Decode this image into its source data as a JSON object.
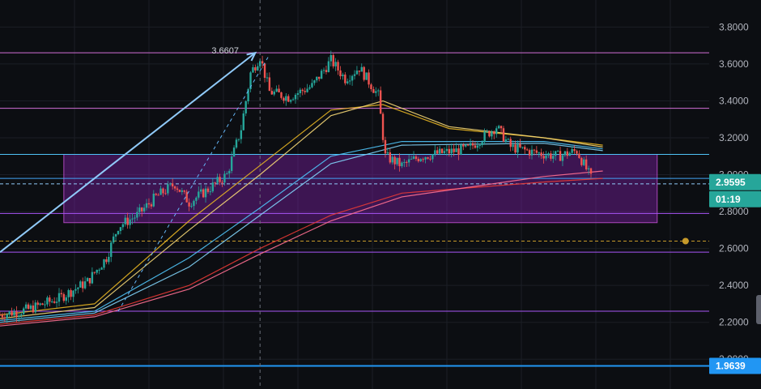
{
  "chart_data": {
    "type": "candlestick",
    "ylim": [
      1.9,
      3.85
    ],
    "y_ticks": [
      "3.8000",
      "3.6000",
      "3.4000",
      "3.2000",
      "3.0000",
      "2.8000",
      "2.6000",
      "2.4000",
      "2.2000",
      "2.0000"
    ],
    "y_tick_values": [
      3.8,
      3.6,
      3.4,
      3.2,
      3.0,
      2.8,
      2.6,
      2.4,
      2.2,
      2.0
    ],
    "grid": true,
    "x_range": [
      0,
      300
    ],
    "price_path": [
      [
        0,
        2.24
      ],
      [
        12,
        2.27
      ],
      [
        25,
        2.33
      ],
      [
        37,
        2.42
      ],
      [
        45,
        2.55
      ],
      [
        50,
        2.72
      ],
      [
        58,
        2.78
      ],
      [
        66,
        2.88
      ],
      [
        74,
        2.95
      ],
      [
        80,
        2.85
      ],
      [
        88,
        2.92
      ],
      [
        96,
        3.0
      ],
      [
        102,
        3.25
      ],
      [
        106,
        3.55
      ],
      [
        110,
        3.64
      ],
      [
        114,
        3.45
      ],
      [
        122,
        3.42
      ],
      [
        132,
        3.48
      ],
      [
        140,
        3.62
      ],
      [
        146,
        3.52
      ],
      [
        152,
        3.58
      ],
      [
        160,
        3.43
      ],
      [
        163,
        3.1
      ],
      [
        170,
        3.05
      ],
      [
        178,
        3.1
      ],
      [
        188,
        3.12
      ],
      [
        198,
        3.14
      ],
      [
        210,
        3.26
      ],
      [
        216,
        3.15
      ],
      [
        226,
        3.12
      ],
      [
        236,
        3.1
      ],
      [
        244,
        3.13
      ],
      [
        250,
        2.98
      ]
    ],
    "moving_averages": [
      {
        "color": "#e6b422",
        "points": [
          [
            0,
            2.24
          ],
          [
            40,
            2.3
          ],
          [
            80,
            2.75
          ],
          [
            110,
            3.05
          ],
          [
            140,
            3.35
          ],
          [
            162,
            3.38
          ],
          [
            190,
            3.25
          ],
          [
            230,
            3.2
          ],
          [
            255,
            3.16
          ]
        ]
      },
      {
        "color": "#f5d776",
        "points": [
          [
            0,
            2.22
          ],
          [
            40,
            2.28
          ],
          [
            80,
            2.7
          ],
          [
            110,
            3.0
          ],
          [
            140,
            3.32
          ],
          [
            162,
            3.4
          ],
          [
            190,
            3.26
          ],
          [
            230,
            3.2
          ],
          [
            255,
            3.15
          ]
        ]
      },
      {
        "color": "#4fc3f7",
        "points": [
          [
            0,
            2.21
          ],
          [
            40,
            2.26
          ],
          [
            80,
            2.55
          ],
          [
            110,
            2.82
          ],
          [
            140,
            3.1
          ],
          [
            170,
            3.18
          ],
          [
            230,
            3.18
          ],
          [
            255,
            3.14
          ]
        ]
      },
      {
        "color": "#81d4fa",
        "points": [
          [
            0,
            2.2
          ],
          [
            40,
            2.25
          ],
          [
            80,
            2.5
          ],
          [
            110,
            2.78
          ],
          [
            140,
            3.06
          ],
          [
            170,
            3.16
          ],
          [
            230,
            3.17
          ],
          [
            255,
            3.13
          ]
        ]
      },
      {
        "color": "#e53935",
        "points": [
          [
            0,
            2.19
          ],
          [
            40,
            2.24
          ],
          [
            80,
            2.4
          ],
          [
            110,
            2.6
          ],
          [
            140,
            2.78
          ],
          [
            170,
            2.9
          ],
          [
            230,
            2.96
          ],
          [
            255,
            2.98
          ]
        ]
      },
      {
        "color": "#ff6f91",
        "points": [
          [
            0,
            2.18
          ],
          [
            40,
            2.23
          ],
          [
            80,
            2.38
          ],
          [
            110,
            2.57
          ],
          [
            140,
            2.75
          ],
          [
            170,
            2.88
          ],
          [
            230,
            2.99
          ],
          [
            255,
            3.02
          ]
        ]
      }
    ],
    "horizontal_levels": [
      {
        "value": 3.6607,
        "color": "#d16fd6"
      },
      {
        "value": 3.36,
        "color": "#d16fd6"
      },
      {
        "value": 3.11,
        "color": "#4fc3f7"
      },
      {
        "value": 2.98,
        "color": "#42a5f5"
      },
      {
        "value": 2.95,
        "color": "#90caf9",
        "dashed": true
      },
      {
        "value": 2.79,
        "color": "#a855f7"
      },
      {
        "value": 2.64,
        "color": "#c79a2a",
        "dashed": true
      },
      {
        "value": 2.58,
        "color": "#a855f7"
      },
      {
        "value": 2.26,
        "color": "#a855f7"
      },
      {
        "value": 1.9639,
        "color": "#2196f3",
        "thick": true
      }
    ],
    "zone": {
      "top": 3.11,
      "bottom": 2.74,
      "x_start": 27,
      "x_end": 278,
      "color": "#7b1fa2"
    },
    "arrow": {
      "from": [
        0,
        2.58
      ],
      "to": [
        108,
        3.6607
      ],
      "label": "3.6607",
      "color": "#90caf9"
    },
    "dashed_trend": {
      "from": [
        50,
        2.26
      ],
      "to": [
        114,
        3.65
      ],
      "color": "#64b5f6"
    },
    "crosshair_x": 110,
    "marker_dot": {
      "x": 290,
      "value": 2.64,
      "color": "#c79a2a"
    },
    "price_badges": [
      {
        "value": 2.9595,
        "label": "2.9595",
        "color": "#26a69a"
      },
      {
        "value": 2.9595,
        "label": "01:19",
        "color": "#26a69a",
        "offset_rows": 1
      },
      {
        "value": 1.9639,
        "label": "1.9639",
        "color": "#2196f3"
      }
    ]
  }
}
